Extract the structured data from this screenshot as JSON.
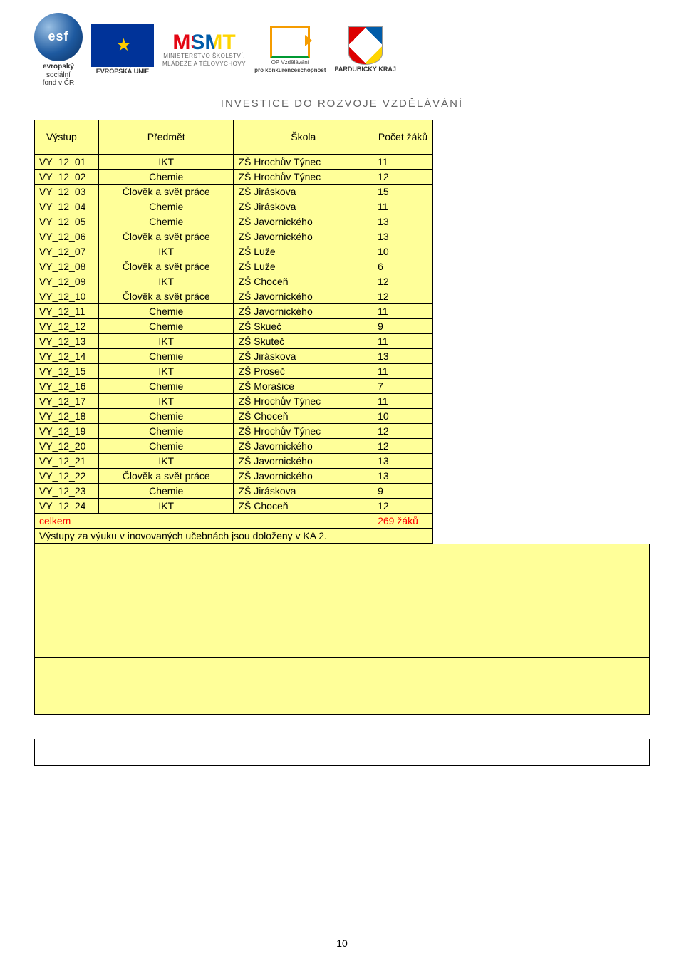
{
  "header": {
    "esf_initials": "esf",
    "esf_line1": "evropský",
    "esf_line2": "sociální",
    "esf_line3": "fond v ČR",
    "eu_label": "EVROPSKÁ UNIE",
    "msmt_glyph": "MŠMT",
    "msmt_line1": "MINISTERSTVO ŠKOLSTVÍ,",
    "msmt_line2": "MLÁDEŽE A TĚLOVÝCHOVY",
    "opvk_line1": "OP Vzdělávání",
    "opvk_line2": "pro konkurenceschopnost",
    "kraj_label": "PARDUBICKÝ KRAJ",
    "invest_line": "INVESTICE DO ROZVOJE VZDĚLÁVÁNÍ"
  },
  "table": {
    "columns": {
      "output": "Výstup",
      "subject": "Předmět",
      "school": "Škola",
      "count": "Počet žáků"
    },
    "column_align": {
      "output": "left",
      "subject": "center",
      "school": "left",
      "count": "left"
    },
    "rows": [
      {
        "out": "VY_12_01",
        "subj": "IKT",
        "school": "ZŠ Hrochův Týnec",
        "count": "11"
      },
      {
        "out": "VY_12_02",
        "subj": "Chemie",
        "school": "ZŠ Hrochův Týnec",
        "count": "12"
      },
      {
        "out": "VY_12_03",
        "subj": "Člověk a svět práce",
        "school": "ZŠ Jiráskova",
        "count": "15"
      },
      {
        "out": "VY_12_04",
        "subj": "Chemie",
        "school": "ZŠ Jiráskova",
        "count": "11"
      },
      {
        "out": "VY_12_05",
        "subj": "Chemie",
        "school": "ZŠ Javornického",
        "count": "13"
      },
      {
        "out": "VY_12_06",
        "subj": "Člověk a svět práce",
        "school": "ZŠ Javornického",
        "count": "13"
      },
      {
        "out": "VY_12_07",
        "subj": "IKT",
        "school": "ZŠ Luže",
        "count": "10"
      },
      {
        "out": "VY_12_08",
        "subj": "Člověk a svět práce",
        "school": "ZŠ Luže",
        "count": "6"
      },
      {
        "out": "VY_12_09",
        "subj": "IKT",
        "school": "ZŠ Choceň",
        "count": "12"
      },
      {
        "out": "VY_12_10",
        "subj": "Člověk a svět práce",
        "school": "ZŠ Javornického",
        "count": "12"
      },
      {
        "out": "VY_12_11",
        "subj": "Chemie",
        "school": "ZŠ Javornického",
        "count": "11"
      },
      {
        "out": "VY_12_12",
        "subj": "Chemie",
        "school": "ZŠ Skueč",
        "count": "9"
      },
      {
        "out": "VY_12_13",
        "subj": "IKT",
        "school": "ZŠ Skuteč",
        "count": "11"
      },
      {
        "out": "VY_12_14",
        "subj": "Chemie",
        "school": "ZŠ Jiráskova",
        "count": "13"
      },
      {
        "out": "VY_12_15",
        "subj": "IKT",
        "school": "ZŠ Proseč",
        "count": "11"
      },
      {
        "out": "VY_12_16",
        "subj": "Chemie",
        "school": "ZŠ Morašice",
        "count": "7"
      },
      {
        "out": "VY_12_17",
        "subj": "IKT",
        "school": "ZŠ Hrochův Týnec",
        "count": "11"
      },
      {
        "out": "VY_12_18",
        "subj": "Chemie",
        "school": "ZŠ Choceň",
        "count": "10"
      },
      {
        "out": "VY_12_19",
        "subj": "Chemie",
        "school": "ZŠ Hrochův Týnec",
        "count": "12"
      },
      {
        "out": "VY_12_20",
        "subj": "Chemie",
        "school": "ZŠ Javornického",
        "count": "12"
      },
      {
        "out": "VY_12_21",
        "subj": "IKT",
        "school": "ZŠ Javornického",
        "count": "13"
      },
      {
        "out": "VY_12_22",
        "subj": "Člověk a svět práce",
        "school": "ZŠ Javornického",
        "count": "13"
      },
      {
        "out": "VY_12_23",
        "subj": "Chemie",
        "school": "ZŠ Jiráskova",
        "count": "9"
      },
      {
        "out": "VY_12_24",
        "subj": "IKT",
        "school": "ZŠ Choceň",
        "count": "12"
      }
    ],
    "total_label": "celkem",
    "total_value": "269  žáků",
    "note": "Výstupy za výuku v inovovaných učebnách jsou doloženy v KA 2."
  },
  "page_number": "10",
  "colors": {
    "cell_bg": "#ffff99",
    "border": "#000000",
    "accent_red": "#ff0000",
    "invest_gray": "#656565"
  }
}
